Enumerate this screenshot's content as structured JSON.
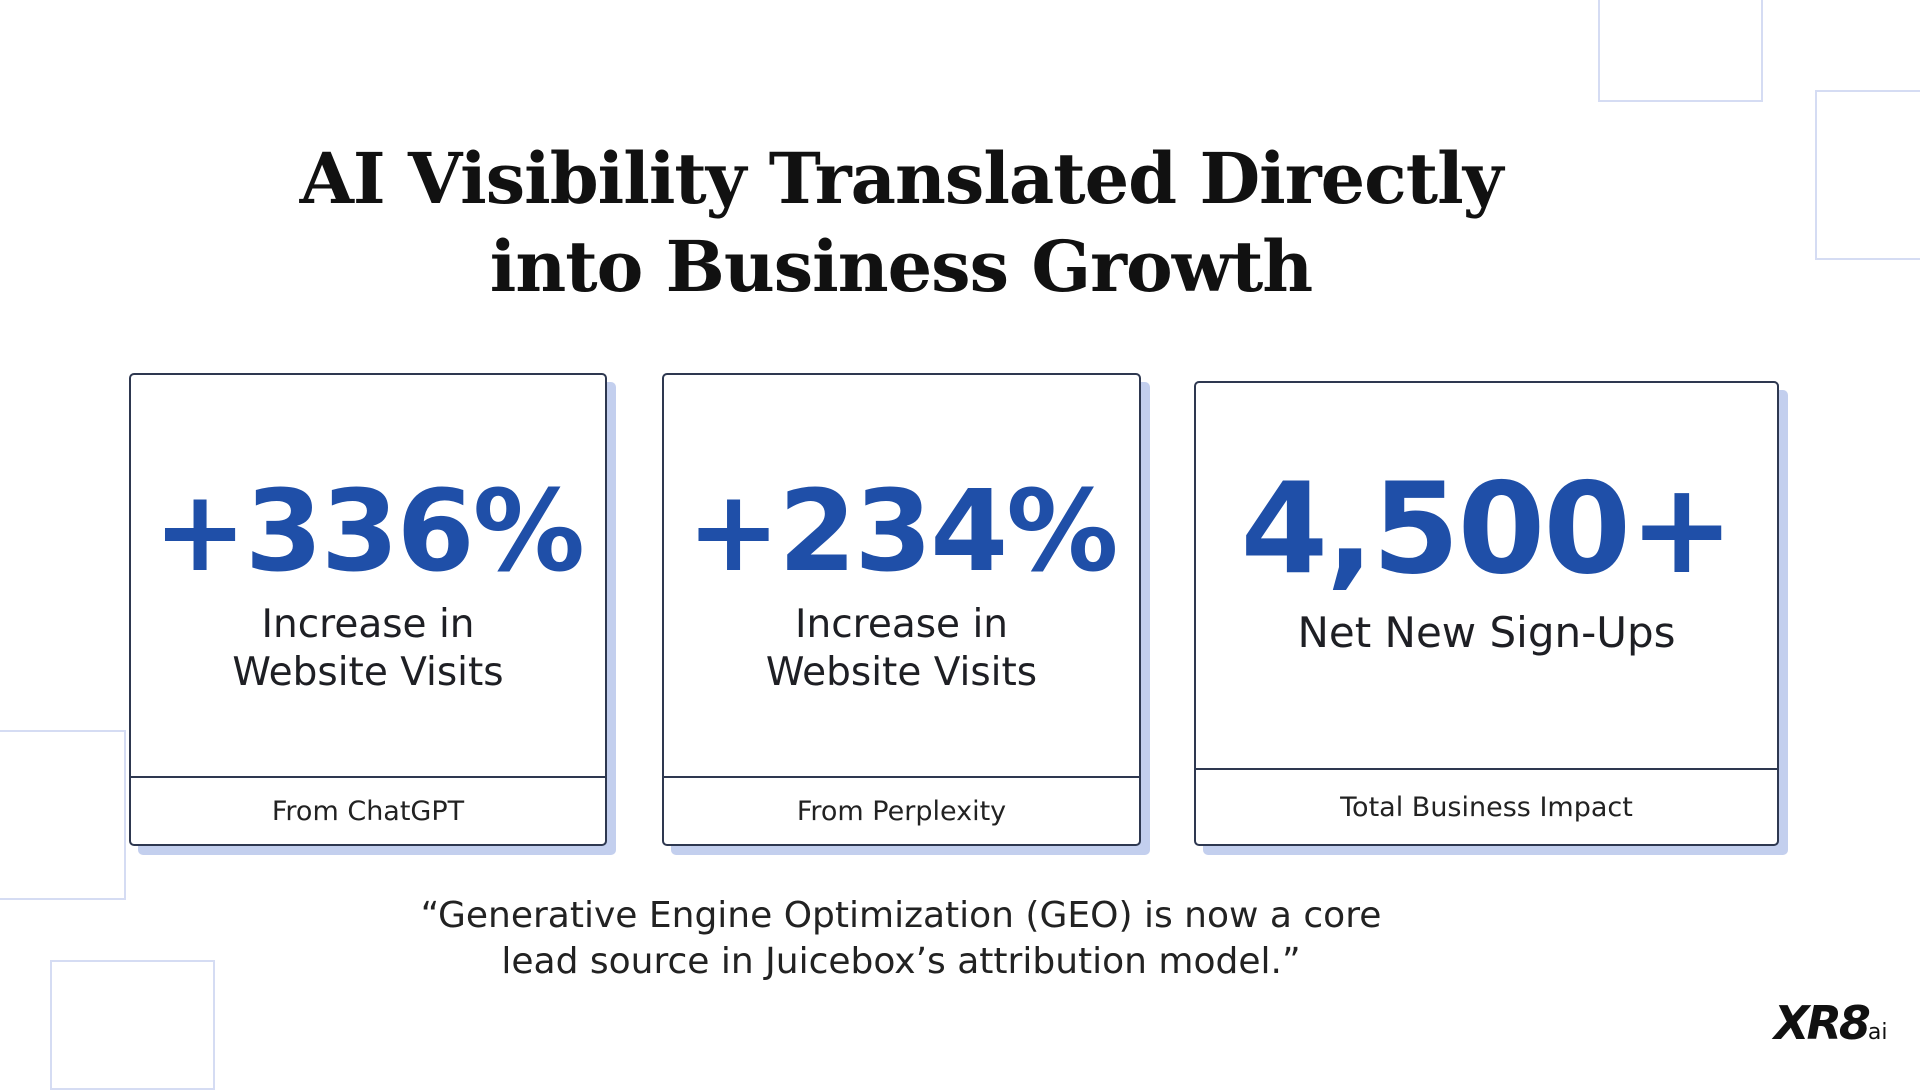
{
  "slide": {
    "title_lines": [
      "AI Visibility Translated Directly",
      "into Business Growth"
    ],
    "cards": [
      {
        "value": "+336%",
        "label": "Increase in Website Visits",
        "footer": "From ChatGPT"
      },
      {
        "value": "+234%",
        "label": "Increase in Website Visits",
        "footer": "From Perplexity"
      },
      {
        "value": "4,500+",
        "label": "Net New Sign-Ups",
        "footer": "Total Business Impact"
      }
    ],
    "quote": "“Generative Engine Optimization (GEO) is now a core lead source in Juicebox’s attribution model.”",
    "logo": {
      "main": "XR8",
      "suffix": "ai"
    }
  }
}
